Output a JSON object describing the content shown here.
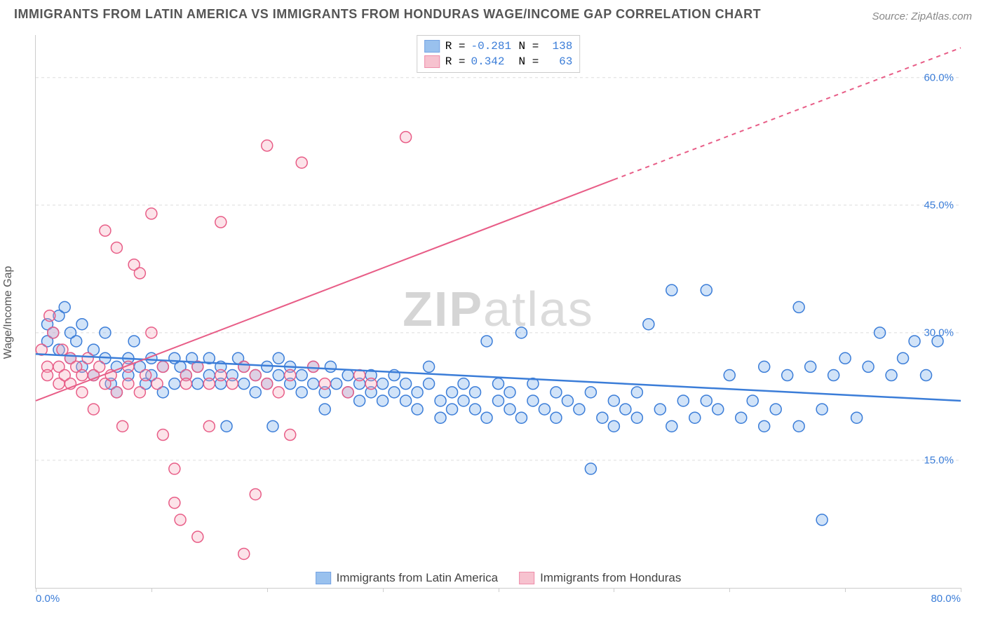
{
  "title": "IMMIGRANTS FROM LATIN AMERICA VS IMMIGRANTS FROM HONDURAS WAGE/INCOME GAP CORRELATION CHART",
  "source": "Source: ZipAtlas.com",
  "ylabel": "Wage/Income Gap",
  "watermark": {
    "bold": "ZIP",
    "rest": "atlas"
  },
  "chart": {
    "type": "scatter",
    "xlim": [
      0,
      80
    ],
    "ylim": [
      0,
      65
    ],
    "x_tick_start": "0.0%",
    "x_tick_end": "80.0%",
    "x_tick_positions": [
      0,
      10,
      20,
      30,
      40,
      50,
      60,
      70,
      80
    ],
    "y_ticks": [
      {
        "v": 15,
        "label": "15.0%"
      },
      {
        "v": 30,
        "label": "30.0%"
      },
      {
        "v": 45,
        "label": "45.0%"
      },
      {
        "v": 60,
        "label": "60.0%"
      }
    ],
    "background_color": "#ffffff",
    "grid_color": "#dddddd",
    "marker_radius": 8,
    "marker_fill_opacity": 0.32,
    "marker_stroke_width": 1.5,
    "series": [
      {
        "name": "Immigrants from Latin America",
        "color": "#6fa8e8",
        "stroke": "#3b7dd8",
        "R": "-0.281",
        "N": "138",
        "trend": {
          "x1": 0,
          "y1": 27.5,
          "x2": 80,
          "y2": 22.0,
          "width": 2.5
        },
        "points": [
          [
            1,
            31
          ],
          [
            1,
            29
          ],
          [
            1.5,
            30
          ],
          [
            2,
            32
          ],
          [
            2,
            28
          ],
          [
            2.5,
            33
          ],
          [
            3,
            30
          ],
          [
            3,
            27
          ],
          [
            3.5,
            29
          ],
          [
            4,
            31
          ],
          [
            4,
            26
          ],
          [
            5,
            28
          ],
          [
            5,
            25
          ],
          [
            6,
            30
          ],
          [
            6,
            27
          ],
          [
            6.5,
            24
          ],
          [
            7,
            26
          ],
          [
            7,
            23
          ],
          [
            8,
            27
          ],
          [
            8,
            25
          ],
          [
            8.5,
            29
          ],
          [
            9,
            26
          ],
          [
            9.5,
            24
          ],
          [
            10,
            27
          ],
          [
            10,
            25
          ],
          [
            11,
            26
          ],
          [
            11,
            23
          ],
          [
            12,
            27
          ],
          [
            12,
            24
          ],
          [
            12.5,
            26
          ],
          [
            13,
            25
          ],
          [
            13.5,
            27
          ],
          [
            14,
            24
          ],
          [
            14,
            26
          ],
          [
            15,
            25
          ],
          [
            15,
            27
          ],
          [
            16,
            24
          ],
          [
            16,
            26
          ],
          [
            16.5,
            19
          ],
          [
            17,
            25
          ],
          [
            17.5,
            27
          ],
          [
            18,
            24
          ],
          [
            18,
            26
          ],
          [
            19,
            25
          ],
          [
            19,
            23
          ],
          [
            20,
            26
          ],
          [
            20,
            24
          ],
          [
            20.5,
            19
          ],
          [
            21,
            25
          ],
          [
            21,
            27
          ],
          [
            22,
            24
          ],
          [
            22,
            26
          ],
          [
            23,
            25
          ],
          [
            23,
            23
          ],
          [
            24,
            26
          ],
          [
            24,
            24
          ],
          [
            25,
            23
          ],
          [
            25,
            21
          ],
          [
            25.5,
            26
          ],
          [
            26,
            24
          ],
          [
            27,
            23
          ],
          [
            27,
            25
          ],
          [
            28,
            24
          ],
          [
            28,
            22
          ],
          [
            29,
            25
          ],
          [
            29,
            23
          ],
          [
            30,
            24
          ],
          [
            30,
            22
          ],
          [
            31,
            25
          ],
          [
            31,
            23
          ],
          [
            32,
            24
          ],
          [
            32,
            22
          ],
          [
            33,
            23
          ],
          [
            33,
            21
          ],
          [
            34,
            24
          ],
          [
            34,
            26
          ],
          [
            35,
            22
          ],
          [
            35,
            20
          ],
          [
            36,
            23
          ],
          [
            36,
            21
          ],
          [
            37,
            24
          ],
          [
            37,
            22
          ],
          [
            38,
            23
          ],
          [
            38,
            21
          ],
          [
            39,
            29
          ],
          [
            39,
            20
          ],
          [
            40,
            22
          ],
          [
            40,
            24
          ],
          [
            41,
            21
          ],
          [
            41,
            23
          ],
          [
            42,
            30
          ],
          [
            42,
            20
          ],
          [
            43,
            22
          ],
          [
            43,
            24
          ],
          [
            44,
            21
          ],
          [
            45,
            23
          ],
          [
            45,
            20
          ],
          [
            46,
            22
          ],
          [
            47,
            21
          ],
          [
            48,
            23
          ],
          [
            48,
            14
          ],
          [
            49,
            20
          ],
          [
            50,
            22
          ],
          [
            50,
            19
          ],
          [
            51,
            21
          ],
          [
            52,
            23
          ],
          [
            52,
            20
          ],
          [
            53,
            31
          ],
          [
            54,
            21
          ],
          [
            55,
            35
          ],
          [
            55,
            19
          ],
          [
            56,
            22
          ],
          [
            57,
            20
          ],
          [
            58,
            35
          ],
          [
            58,
            22
          ],
          [
            59,
            21
          ],
          [
            60,
            25
          ],
          [
            61,
            20
          ],
          [
            62,
            22
          ],
          [
            63,
            26
          ],
          [
            63,
            19
          ],
          [
            64,
            21
          ],
          [
            65,
            25
          ],
          [
            66,
            33
          ],
          [
            66,
            19
          ],
          [
            67,
            26
          ],
          [
            68,
            21
          ],
          [
            68,
            8
          ],
          [
            69,
            25
          ],
          [
            70,
            27
          ],
          [
            71,
            20
          ],
          [
            72,
            26
          ],
          [
            73,
            30
          ],
          [
            74,
            25
          ],
          [
            75,
            27
          ],
          [
            76,
            29
          ],
          [
            77,
            25
          ],
          [
            78,
            29
          ]
        ]
      },
      {
        "name": "Immigrants from Honduras",
        "color": "#f5a9bc",
        "stroke": "#e85d87",
        "R": "0.342",
        "N": "63",
        "trend": {
          "x1": 0,
          "y1": 22.0,
          "x2": 50,
          "y2": 48.0,
          "x3": 80,
          "y3": 63.5,
          "split": 50,
          "width": 2
        },
        "points": [
          [
            0.5,
            28
          ],
          [
            1,
            26
          ],
          [
            1,
            25
          ],
          [
            1.2,
            32
          ],
          [
            1.5,
            30
          ],
          [
            2,
            26
          ],
          [
            2,
            24
          ],
          [
            2.3,
            28
          ],
          [
            2.5,
            25
          ],
          [
            3,
            27
          ],
          [
            3,
            24
          ],
          [
            3.5,
            26
          ],
          [
            4,
            25
          ],
          [
            4,
            23
          ],
          [
            4.5,
            27
          ],
          [
            5,
            25
          ],
          [
            5,
            21
          ],
          [
            5.5,
            26
          ],
          [
            6,
            24
          ],
          [
            6,
            42
          ],
          [
            6.5,
            25
          ],
          [
            7,
            23
          ],
          [
            7,
            40
          ],
          [
            7.5,
            19
          ],
          [
            8,
            24
          ],
          [
            8,
            26
          ],
          [
            8.5,
            38
          ],
          [
            9,
            23
          ],
          [
            9,
            37
          ],
          [
            9.5,
            25
          ],
          [
            10,
            30
          ],
          [
            10,
            44
          ],
          [
            10.5,
            24
          ],
          [
            11,
            26
          ],
          [
            11,
            18
          ],
          [
            12,
            14
          ],
          [
            12,
            10
          ],
          [
            12.5,
            8
          ],
          [
            13,
            25
          ],
          [
            13,
            24
          ],
          [
            14,
            6
          ],
          [
            14,
            26
          ],
          [
            15,
            19
          ],
          [
            15,
            24
          ],
          [
            16,
            25
          ],
          [
            16,
            43
          ],
          [
            17,
            24
          ],
          [
            18,
            26
          ],
          [
            18,
            4
          ],
          [
            19,
            25
          ],
          [
            19,
            11
          ],
          [
            20,
            24
          ],
          [
            20,
            52
          ],
          [
            21,
            23
          ],
          [
            22,
            18
          ],
          [
            22,
            25
          ],
          [
            23,
            50
          ],
          [
            24,
            26
          ],
          [
            25,
            24
          ],
          [
            27,
            23
          ],
          [
            28,
            25
          ],
          [
            29,
            24
          ],
          [
            32,
            53
          ]
        ]
      }
    ],
    "legend_labels": {
      "R": "R =",
      "N": "N ="
    }
  },
  "colors": {
    "title": "#555555",
    "source": "#888888",
    "axis": "#cccccc",
    "tick_text": "#3b7dd8",
    "legend_value": "#3b7dd8"
  },
  "fonts": {
    "title_size": 18,
    "source_size": 15,
    "axis_label_size": 16,
    "tick_size": 15,
    "legend_size": 16,
    "watermark_size": 70
  }
}
